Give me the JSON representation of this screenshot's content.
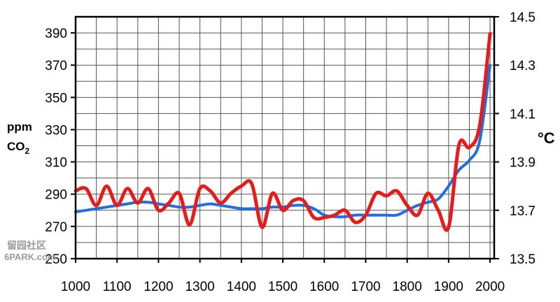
{
  "chart_data": {
    "type": "line",
    "title": "",
    "x": [
      1000,
      1025,
      1050,
      1075,
      1100,
      1125,
      1150,
      1175,
      1200,
      1225,
      1250,
      1275,
      1300,
      1325,
      1350,
      1375,
      1400,
      1425,
      1450,
      1475,
      1500,
      1525,
      1550,
      1575,
      1600,
      1625,
      1650,
      1675,
      1700,
      1725,
      1750,
      1775,
      1800,
      1825,
      1850,
      1875,
      1900,
      1925,
      1950,
      1975,
      2000
    ],
    "xlim": [
      1000,
      2010
    ],
    "x_ticks": [
      "1000",
      "1100",
      "1200",
      "1300",
      "1400",
      "1500",
      "1600",
      "1700",
      "1800",
      "1900",
      "2000"
    ],
    "left_axis": {
      "label_line1": "ppm",
      "label_line2": "CO",
      "label_sub": "2",
      "ylim": [
        250,
        400
      ],
      "ticks": [
        "250",
        "270",
        "290",
        "310",
        "330",
        "350",
        "370",
        "390"
      ]
    },
    "right_axis": {
      "label": "°C",
      "ylim": [
        13.5,
        14.5
      ],
      "ticks": [
        "13.5",
        "13.7",
        "13.9",
        "14.1",
        "14.3",
        "14.5"
      ]
    },
    "series": [
      {
        "name": "",
        "axis": "left",
        "color": "#1f6fe0",
        "values": [
          279,
          280,
          281,
          282,
          283,
          284,
          285,
          285,
          284,
          283,
          282,
          282,
          283,
          284,
          283,
          282,
          281,
          281,
          281,
          282,
          282,
          283,
          283,
          281,
          277,
          276,
          276,
          277,
          277,
          277,
          277,
          277,
          280,
          283,
          285,
          287,
          295,
          305,
          311,
          323,
          370
        ]
      },
      {
        "name": "",
        "axis": "right",
        "color": "#e61c1c",
        "values": [
          13.78,
          13.79,
          13.72,
          13.8,
          13.72,
          13.79,
          13.73,
          13.79,
          13.7,
          13.73,
          13.77,
          13.64,
          13.79,
          13.78,
          13.73,
          13.77,
          13.8,
          13.81,
          13.63,
          13.77,
          13.7,
          13.74,
          13.74,
          13.67,
          13.67,
          13.68,
          13.7,
          13.65,
          13.68,
          13.77,
          13.76,
          13.78,
          13.72,
          13.68,
          13.77,
          13.7,
          13.63,
          13.97,
          13.96,
          14.05,
          14.43
        ]
      }
    ],
    "grid": true,
    "watermark_line1": "留园社区",
    "watermark_line2": "6PARK.com"
  }
}
